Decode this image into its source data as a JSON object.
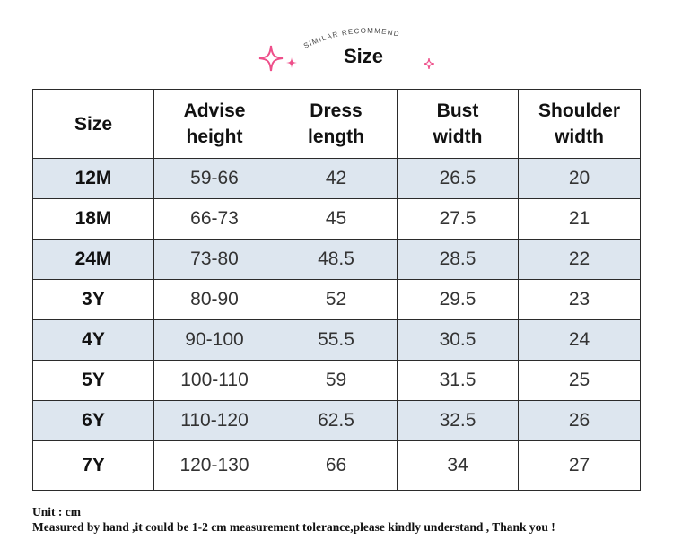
{
  "header": {
    "arc_text": "SIMILAR RECOMMEND",
    "title": "Size",
    "sparkle_color_main": "#ee4f8a"
  },
  "table": {
    "headers": [
      [
        "Size"
      ],
      [
        "Advise",
        "height"
      ],
      [
        "Dress",
        "length"
      ],
      [
        "Bust",
        "width"
      ],
      [
        "Shoulder",
        "width"
      ]
    ],
    "rows": [
      [
        "12M",
        "59-66",
        "42",
        "26.5",
        "20"
      ],
      [
        "18M",
        "66-73",
        "45",
        "27.5",
        "21"
      ],
      [
        "24M",
        "73-80",
        "48.5",
        "28.5",
        "22"
      ],
      [
        "3Y",
        "80-90",
        "52",
        "29.5",
        "23"
      ],
      [
        "4Y",
        "90-100",
        "55.5",
        "30.5",
        "24"
      ],
      [
        "5Y",
        "100-110",
        "59",
        "31.5",
        "25"
      ],
      [
        "6Y",
        "110-120",
        "62.5",
        "32.5",
        "26"
      ],
      [
        "7Y",
        "120-130",
        "66",
        "34",
        "27"
      ]
    ],
    "shade_color": "#dde6ef"
  },
  "notes": {
    "unit": "Unit : cm",
    "disclaimer": "Measured by hand ,it could be 1-2 cm measurement tolerance,please kindly understand , Thank you !"
  }
}
